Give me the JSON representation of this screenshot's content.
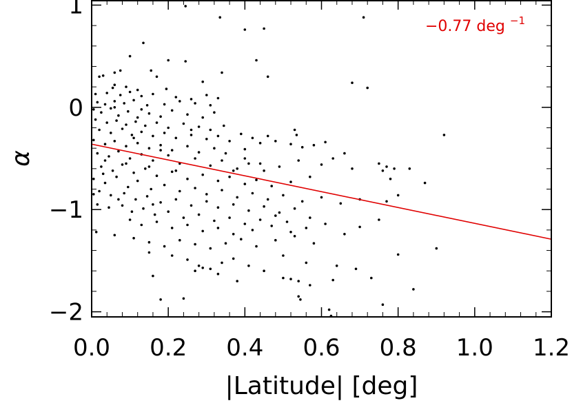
{
  "chart_data": {
    "type": "scatter",
    "title": "",
    "xlabel": "|Latitude| [deg]",
    "ylabel": "α",
    "xlim": [
      0.0,
      1.2
    ],
    "ylim": [
      -2.05,
      1.05
    ],
    "x_ticks": [
      "0.0",
      "0.2",
      "0.4",
      "0.6",
      "0.8",
      "1.0",
      "1.2"
    ],
    "x_tick_values": [
      0.0,
      0.2,
      0.4,
      0.6,
      0.8,
      1.0,
      1.2
    ],
    "y_ticks": [
      "−2",
      "−1",
      "0",
      "1"
    ],
    "y_tick_values": [
      -2,
      -1,
      0,
      1
    ],
    "grid": false,
    "point_color": "#000000",
    "fit_line": {
      "color": "#e00000",
      "x": [
        0.0,
        1.2
      ],
      "y": [
        -0.36,
        -1.29
      ],
      "slope": -0.77
    },
    "annotation": {
      "text": "−0.77 deg",
      "superscript": "−1",
      "color": "#e00000",
      "placement": "top-right"
    },
    "series": [
      {
        "points": [
          [
            0.245,
            0.99
          ],
          [
            0.335,
            0.88
          ],
          [
            0.71,
            0.88
          ],
          [
            0.4,
            0.76
          ],
          [
            0.45,
            0.77
          ],
          [
            0.135,
            0.63
          ],
          [
            0.1,
            0.5
          ],
          [
            0.2,
            0.46
          ],
          [
            0.245,
            0.45
          ],
          [
            0.43,
            0.46
          ],
          [
            0.06,
            0.34
          ],
          [
            0.075,
            0.36
          ],
          [
            0.155,
            0.36
          ],
          [
            0.34,
            0.34
          ],
          [
            0.02,
            0.3
          ],
          [
            0.03,
            0.31
          ],
          [
            0.17,
            0.3
          ],
          [
            0.46,
            0.3
          ],
          [
            0.29,
            0.25
          ],
          [
            0.68,
            0.24
          ],
          [
            0.055,
            0.19
          ],
          [
            0.06,
            0.22
          ],
          [
            0.09,
            0.2
          ],
          [
            0.12,
            0.17
          ],
          [
            0.195,
            0.18
          ],
          [
            0.72,
            0.19
          ],
          [
            0.01,
            0.13
          ],
          [
            0.04,
            0.14
          ],
          [
            0.075,
            0.12
          ],
          [
            0.1,
            0.15
          ],
          [
            0.13,
            0.11
          ],
          [
            0.16,
            0.13
          ],
          [
            0.22,
            0.1
          ],
          [
            0.26,
            0.08
          ],
          [
            0.3,
            0.12
          ],
          [
            0.33,
            0.09
          ],
          [
            0.015,
            0.05
          ],
          [
            0.035,
            0.03
          ],
          [
            0.06,
            0.06
          ],
          [
            0.085,
            0.04
          ],
          [
            0.11,
            0.07
          ],
          [
            0.145,
            0.02
          ],
          [
            0.19,
            0.03
          ],
          [
            0.23,
            0.06
          ],
          [
            0.27,
            0.04
          ],
          [
            0.31,
            0.02
          ],
          [
            0.005,
            -0.02
          ],
          [
            0.025,
            -0.05
          ],
          [
            0.05,
            -0.01
          ],
          [
            0.07,
            -0.08
          ],
          [
            0.095,
            -0.04
          ],
          [
            0.12,
            -0.1
          ],
          [
            0.15,
            -0.06
          ],
          [
            0.18,
            -0.09
          ],
          [
            0.21,
            -0.03
          ],
          [
            0.25,
            -0.07
          ],
          [
            0.29,
            -0.1
          ],
          [
            0.32,
            -0.05
          ],
          [
            0.01,
            -0.12
          ],
          [
            0.04,
            -0.15
          ],
          [
            0.065,
            -0.13
          ],
          [
            0.09,
            -0.17
          ],
          [
            0.115,
            -0.14
          ],
          [
            0.14,
            -0.18
          ],
          [
            0.17,
            -0.15
          ],
          [
            0.2,
            -0.2
          ],
          [
            0.24,
            -0.16
          ],
          [
            0.28,
            -0.19
          ],
          [
            0.31,
            -0.22
          ],
          [
            0.345,
            -0.18
          ],
          [
            0.02,
            -0.22
          ],
          [
            0.05,
            -0.25
          ],
          [
            0.08,
            -0.21
          ],
          [
            0.105,
            -0.27
          ],
          [
            0.13,
            -0.24
          ],
          [
            0.16,
            -0.28
          ],
          [
            0.19,
            -0.25
          ],
          [
            0.22,
            -0.3
          ],
          [
            0.26,
            -0.27
          ],
          [
            0.3,
            -0.31
          ],
          [
            0.33,
            -0.28
          ],
          [
            0.36,
            -0.33
          ],
          [
            0.39,
            -0.26
          ],
          [
            0.42,
            -0.3
          ],
          [
            0.46,
            -0.28
          ],
          [
            0.53,
            -0.22
          ],
          [
            0.535,
            -0.27
          ],
          [
            0.005,
            -0.32
          ],
          [
            0.035,
            -0.36
          ],
          [
            0.06,
            -0.33
          ],
          [
            0.09,
            -0.38
          ],
          [
            0.12,
            -0.35
          ],
          [
            0.15,
            -0.4
          ],
          [
            0.18,
            -0.37
          ],
          [
            0.21,
            -0.42
          ],
          [
            0.25,
            -0.38
          ],
          [
            0.28,
            -0.44
          ],
          [
            0.32,
            -0.4
          ],
          [
            0.35,
            -0.45
          ],
          [
            0.4,
            -0.41
          ],
          [
            0.44,
            -0.35
          ],
          [
            0.48,
            -0.33
          ],
          [
            0.52,
            -0.36
          ],
          [
            0.55,
            -0.39
          ],
          [
            0.58,
            -0.37
          ],
          [
            0.61,
            -0.34
          ],
          [
            0.015,
            -0.45
          ],
          [
            0.045,
            -0.48
          ],
          [
            0.07,
            -0.43
          ],
          [
            0.1,
            -0.5
          ],
          [
            0.13,
            -0.46
          ],
          [
            0.16,
            -0.52
          ],
          [
            0.2,
            -0.47
          ],
          [
            0.23,
            -0.55
          ],
          [
            0.27,
            -0.5
          ],
          [
            0.31,
            -0.57
          ],
          [
            0.34,
            -0.52
          ],
          [
            0.38,
            -0.6
          ],
          [
            0.41,
            -0.55
          ],
          [
            0.45,
            -0.62
          ],
          [
            0.49,
            -0.58
          ],
          [
            0.54,
            -0.52
          ],
          [
            0.6,
            -0.56
          ],
          [
            0.63,
            -0.5
          ],
          [
            0.66,
            -0.45
          ],
          [
            0.68,
            -0.6
          ],
          [
            0.75,
            -0.55
          ],
          [
            0.77,
            -0.58
          ],
          [
            0.79,
            -0.6
          ],
          [
            0.025,
            -0.58
          ],
          [
            0.055,
            -0.62
          ],
          [
            0.08,
            -0.56
          ],
          [
            0.11,
            -0.64
          ],
          [
            0.14,
            -0.6
          ],
          [
            0.17,
            -0.67
          ],
          [
            0.21,
            -0.63
          ],
          [
            0.25,
            -0.7
          ],
          [
            0.29,
            -0.66
          ],
          [
            0.33,
            -0.72
          ],
          [
            0.36,
            -0.68
          ],
          [
            0.4,
            -0.75
          ],
          [
            0.43,
            -0.71
          ],
          [
            0.47,
            -0.77
          ],
          [
            0.52,
            -0.73
          ],
          [
            0.57,
            -0.68
          ],
          [
            0.76,
            -0.62
          ],
          [
            0.78,
            -0.7
          ],
          [
            0.83,
            -0.6
          ],
          [
            0.87,
            -0.74
          ],
          [
            0.92,
            -0.27
          ],
          [
            0.005,
            -0.7
          ],
          [
            0.035,
            -0.74
          ],
          [
            0.065,
            -0.68
          ],
          [
            0.095,
            -0.78
          ],
          [
            0.12,
            -0.72
          ],
          [
            0.155,
            -0.8
          ],
          [
            0.19,
            -0.76
          ],
          [
            0.23,
            -0.82
          ],
          [
            0.27,
            -0.79
          ],
          [
            0.3,
            -0.85
          ],
          [
            0.34,
            -0.81
          ],
          [
            0.38,
            -0.88
          ],
          [
            0.42,
            -0.84
          ],
          [
            0.46,
            -0.9
          ],
          [
            0.5,
            -0.86
          ],
          [
            0.55,
            -0.92
          ],
          [
            0.6,
            -0.88
          ],
          [
            0.65,
            -0.94
          ],
          [
            0.7,
            -0.9
          ],
          [
            0.77,
            -0.92
          ],
          [
            0.8,
            -0.86
          ],
          [
            0.02,
            -0.82
          ],
          [
            0.05,
            -0.86
          ],
          [
            0.085,
            -0.84
          ],
          [
            0.115,
            -0.9
          ],
          [
            0.145,
            -0.87
          ],
          [
            0.18,
            -0.93
          ],
          [
            0.22,
            -0.9
          ],
          [
            0.26,
            -0.96
          ],
          [
            0.3,
            -0.92
          ],
          [
            0.33,
            -0.98
          ],
          [
            0.37,
            -0.95
          ],
          [
            0.41,
            -1.01
          ],
          [
            0.45,
            -0.97
          ],
          [
            0.49,
            -1.03
          ],
          [
            0.53,
            -0.99
          ],
          [
            0.015,
            -0.95
          ],
          [
            0.045,
            -0.98
          ],
          [
            0.08,
            -0.96
          ],
          [
            0.105,
            -1.02
          ],
          [
            0.135,
            -0.99
          ],
          [
            0.165,
            -1.05
          ],
          [
            0.2,
            -1.02
          ],
          [
            0.24,
            -1.08
          ],
          [
            0.28,
            -1.05
          ],
          [
            0.32,
            -1.11
          ],
          [
            0.36,
            -1.08
          ],
          [
            0.4,
            -1.14
          ],
          [
            0.44,
            -1.1
          ],
          [
            0.48,
            -1.06
          ],
          [
            0.51,
            -1.12
          ],
          [
            0.57,
            -1.08
          ],
          [
            0.1,
            -1.1
          ],
          [
            0.13,
            -1.15
          ],
          [
            0.17,
            -1.12
          ],
          [
            0.21,
            -1.18
          ],
          [
            0.25,
            -1.15
          ],
          [
            0.29,
            -1.21
          ],
          [
            0.33,
            -1.18
          ],
          [
            0.37,
            -1.24
          ],
          [
            0.42,
            -1.2
          ],
          [
            0.47,
            -1.16
          ],
          [
            0.52,
            -1.22
          ],
          [
            0.56,
            -1.18
          ],
          [
            0.61,
            -1.14
          ],
          [
            0.66,
            -1.24
          ],
          [
            0.7,
            -1.17
          ],
          [
            0.75,
            -1.1
          ],
          [
            0.012,
            -1.22
          ],
          [
            0.06,
            -1.25
          ],
          [
            0.11,
            -1.28
          ],
          [
            0.15,
            -1.32
          ],
          [
            0.19,
            -1.36
          ],
          [
            0.23,
            -1.3
          ],
          [
            0.27,
            -1.34
          ],
          [
            0.31,
            -1.38
          ],
          [
            0.35,
            -1.33
          ],
          [
            0.39,
            -1.29
          ],
          [
            0.43,
            -1.36
          ],
          [
            0.48,
            -1.3
          ],
          [
            0.53,
            -1.26
          ],
          [
            0.58,
            -1.33
          ],
          [
            0.9,
            -1.38
          ],
          [
            0.15,
            -1.42
          ],
          [
            0.21,
            -1.45
          ],
          [
            0.25,
            -1.49
          ],
          [
            0.28,
            -1.55
          ],
          [
            0.31,
            -1.58
          ],
          [
            0.34,
            -1.52
          ],
          [
            0.37,
            -1.48
          ],
          [
            0.41,
            -1.55
          ],
          [
            0.45,
            -1.6
          ],
          [
            0.5,
            -1.45
          ],
          [
            0.56,
            -1.52
          ],
          [
            0.64,
            -1.55
          ],
          [
            0.69,
            -1.58
          ],
          [
            0.8,
            -1.44
          ],
          [
            0.27,
            -1.6
          ],
          [
            0.29,
            -1.57
          ],
          [
            0.33,
            -1.63
          ],
          [
            0.16,
            -1.65
          ],
          [
            0.38,
            -1.7
          ],
          [
            0.5,
            -1.67
          ],
          [
            0.52,
            -1.68
          ],
          [
            0.54,
            -1.7
          ],
          [
            0.63,
            -1.69
          ],
          [
            0.73,
            -1.67
          ],
          [
            0.18,
            -1.88
          ],
          [
            0.24,
            -1.87
          ],
          [
            0.54,
            -1.85
          ],
          [
            0.545,
            -1.88
          ],
          [
            0.76,
            -1.93
          ],
          [
            0.84,
            -1.78
          ],
          [
            0.62,
            -1.98
          ],
          [
            0.625,
            -2.04
          ],
          [
            0.57,
            -1.74
          ],
          [
            0.06,
            0.0
          ],
          [
            0.13,
            -0.02
          ],
          [
            0.09,
            -0.55
          ],
          [
            0.15,
            -0.58
          ],
          [
            0.03,
            -0.65
          ],
          [
            0.07,
            -0.9
          ],
          [
            0.4,
            -0.5
          ],
          [
            0.37,
            -0.62
          ],
          [
            0.44,
            -0.55
          ],
          [
            0.26,
            -0.22
          ],
          [
            0.11,
            -0.3
          ],
          [
            0.18,
            -0.42
          ],
          [
            0.22,
            -0.62
          ],
          [
            0.035,
            -0.52
          ],
          [
            0.005,
            -0.85
          ],
          [
            0.16,
            -0.95
          ]
        ]
      }
    ]
  }
}
